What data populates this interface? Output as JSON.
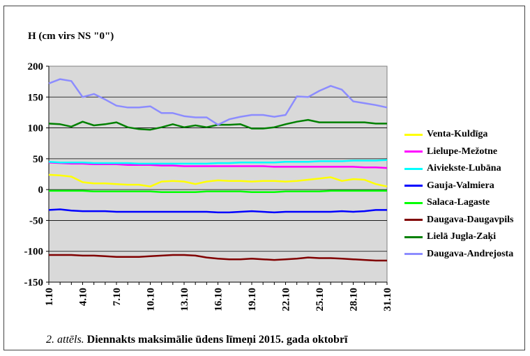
{
  "chart_data": {
    "type": "line",
    "ylabel": "H  (cm virs NS \"0\")",
    "caption_figure": "2. attēls.",
    "caption_title": "Diennakts maksimālie ūdens līmeņi 2015. gada oktobrī",
    "ylim": [
      -150,
      200
    ],
    "yticks": [
      "-150",
      "-100",
      "-50",
      "0",
      "50",
      "100",
      "150",
      "200"
    ],
    "ytick_values": [
      -150,
      -100,
      -50,
      0,
      50,
      100,
      150,
      200
    ],
    "x": [
      1,
      2,
      3,
      4,
      5,
      6,
      7,
      8,
      9,
      10,
      11,
      12,
      13,
      14,
      15,
      16,
      17,
      18,
      19,
      20,
      21,
      22,
      23,
      24,
      25,
      26,
      27,
      28,
      29,
      30,
      31
    ],
    "xtick_labels": [
      "1.10",
      "4.10",
      "7.10",
      "10.10",
      "13.10",
      "16.10",
      "19.10",
      "22.10",
      "25.10",
      "28.10",
      "31.10"
    ],
    "xtick_days": [
      1,
      4,
      7,
      10,
      13,
      16,
      19,
      22,
      25,
      28,
      31
    ],
    "grid": true,
    "plot_background": "#d9d9d9",
    "legend_position": "right",
    "series": [
      {
        "name": "Venta-Kuldīga",
        "color": "#ffff00",
        "values": [
          24,
          23,
          21,
          12,
          10,
          10,
          9,
          8,
          8,
          5,
          13,
          14,
          13,
          9,
          13,
          15,
          14,
          14,
          13,
          14,
          14,
          13,
          14,
          16,
          18,
          20,
          14,
          17,
          16,
          9,
          5
        ]
      },
      {
        "name": "Lielupe-Mežotne",
        "color": "#ff00ff",
        "values": [
          44,
          43,
          42,
          42,
          41,
          41,
          41,
          40,
          40,
          40,
          39,
          39,
          38,
          38,
          38,
          38,
          38,
          38,
          38,
          38,
          37,
          37,
          37,
          37,
          37,
          37,
          37,
          37,
          36,
          36,
          35
        ]
      },
      {
        "name": "Aiviekste-Lubāna",
        "color": "#00ffff",
        "values": [
          45,
          44,
          44,
          44,
          43,
          43,
          43,
          43,
          42,
          42,
          42,
          42,
          42,
          42,
          42,
          43,
          43,
          44,
          44,
          44,
          44,
          45,
          45,
          45,
          46,
          46,
          46,
          47,
          47,
          47,
          48
        ]
      },
      {
        "name": "Gauja-Valmiera",
        "color": "#0000ff",
        "values": [
          -33,
          -32,
          -34,
          -35,
          -35,
          -35,
          -36,
          -36,
          -36,
          -36,
          -36,
          -36,
          -36,
          -36,
          -36,
          -37,
          -37,
          -36,
          -35,
          -36,
          -37,
          -36,
          -36,
          -36,
          -36,
          -36,
          -35,
          -36,
          -35,
          -33,
          -33
        ]
      },
      {
        "name": "Salaca-Lagaste",
        "color": "#00ff00",
        "values": [
          -2,
          -2,
          -2,
          -2,
          -3,
          -3,
          -3,
          -3,
          -3,
          -3,
          -4,
          -4,
          -4,
          -4,
          -3,
          -3,
          -3,
          -3,
          -4,
          -4,
          -4,
          -3,
          -3,
          -3,
          -3,
          -2,
          -2,
          -2,
          -2,
          -2,
          -2
        ]
      },
      {
        "name": "Daugava-Daugavpils",
        "color": "#800000",
        "values": [
          -106,
          -106,
          -106,
          -107,
          -107,
          -108,
          -109,
          -109,
          -109,
          -108,
          -107,
          -106,
          -106,
          -107,
          -110,
          -112,
          -113,
          -113,
          -112,
          -113,
          -114,
          -113,
          -112,
          -110,
          -111,
          -111,
          -112,
          -113,
          -114,
          -115,
          -115
        ]
      },
      {
        "name": "Lielā Jugla-Zaķi",
        "color": "#008000",
        "values": [
          107,
          106,
          102,
          110,
          104,
          106,
          109,
          101,
          98,
          97,
          101,
          106,
          101,
          104,
          101,
          105,
          105,
          106,
          99,
          99,
          101,
          106,
          110,
          113,
          109,
          109,
          109,
          109,
          109,
          107,
          107
        ]
      },
      {
        "name": "Daugava-Andrejosta",
        "color": "#8c8cff",
        "values": [
          172,
          179,
          176,
          150,
          155,
          146,
          136,
          133,
          133,
          135,
          124,
          124,
          119,
          117,
          117,
          105,
          114,
          118,
          121,
          121,
          118,
          121,
          151,
          150,
          160,
          168,
          162,
          143,
          140,
          137,
          133
        ]
      }
    ]
  }
}
